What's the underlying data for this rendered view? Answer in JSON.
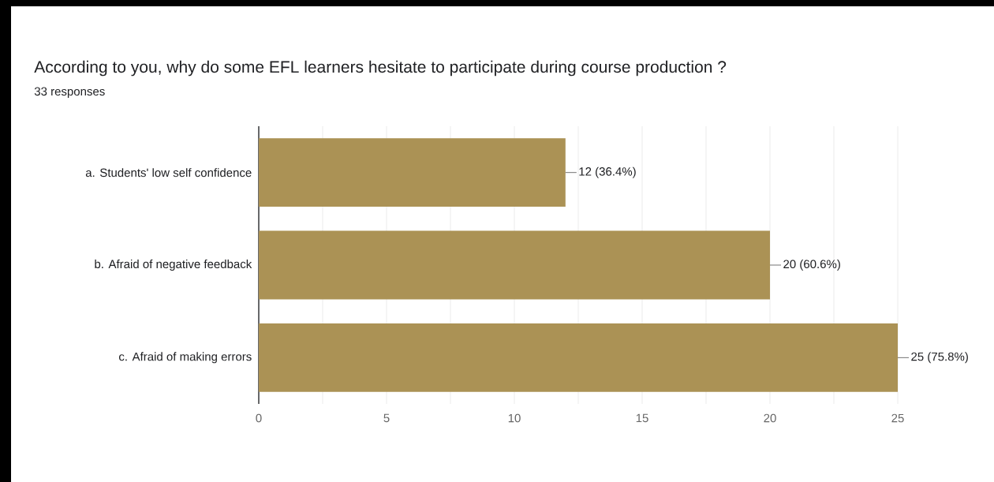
{
  "chart_data": {
    "type": "bar",
    "orientation": "horizontal",
    "title": "According to you, why do some EFL learners hesitate to participate during course production ?",
    "subtitle": "33 responses",
    "categories": [
      "a. Students' low self confidence",
      "b. Afraid of negative feedback",
      "c. Afraid of making errors"
    ],
    "values": [
      12,
      20,
      25
    ],
    "value_labels": [
      "12 (36.4%)",
      "20 (60.6%)",
      "25 (75.8%)"
    ],
    "color": "#ab9255",
    "xlim": [
      0,
      25
    ],
    "xticks": [
      0,
      5,
      10,
      15,
      20,
      25
    ],
    "grid": "x"
  }
}
